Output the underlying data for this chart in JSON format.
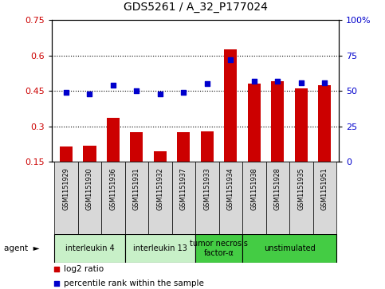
{
  "title": "GDS5261 / A_32_P177024",
  "samples": [
    "GSM1151929",
    "GSM1151930",
    "GSM1151936",
    "GSM1151931",
    "GSM1151932",
    "GSM1151937",
    "GSM1151933",
    "GSM1151934",
    "GSM1151938",
    "GSM1151928",
    "GSM1151935",
    "GSM1151951"
  ],
  "log2_ratio": [
    0.215,
    0.22,
    0.335,
    0.275,
    0.195,
    0.275,
    0.28,
    0.625,
    0.48,
    0.49,
    0.46,
    0.475
  ],
  "percentile_right": [
    49,
    48,
    54,
    50,
    48,
    49,
    55,
    72,
    57,
    57,
    56,
    56
  ],
  "ylim_left": [
    0.15,
    0.75
  ],
  "ylim_right": [
    0,
    100
  ],
  "yticks_left": [
    0.15,
    0.3,
    0.45,
    0.6,
    0.75
  ],
  "yticks_right": [
    0,
    25,
    50,
    75,
    100
  ],
  "ytick_labels_left": [
    "0.15",
    "0.3",
    "0.45",
    "0.6",
    "0.75"
  ],
  "ytick_labels_right": [
    "0",
    "25",
    "50",
    "75",
    "100%"
  ],
  "hlines": [
    0.3,
    0.45,
    0.6
  ],
  "agents": [
    {
      "label": "interleukin 4",
      "start": 0,
      "end": 3,
      "color": "#c8f0c8"
    },
    {
      "label": "interleukin 13",
      "start": 3,
      "end": 6,
      "color": "#c8f0c8"
    },
    {
      "label": "tumor necrosis\nfactor-α",
      "start": 6,
      "end": 8,
      "color": "#44cc44"
    },
    {
      "label": "unstimulated",
      "start": 8,
      "end": 12,
      "color": "#44cc44"
    }
  ],
  "bar_color": "#cc0000",
  "scatter_color": "#0000cc",
  "bar_width": 0.55,
  "title_fontsize": 10,
  "tick_fontsize": 8,
  "legend_log2": "log2 ratio",
  "legend_pct": "percentile rank within the sample",
  "bg_color": "#d8d8d8",
  "plot_bg": "#ffffff"
}
